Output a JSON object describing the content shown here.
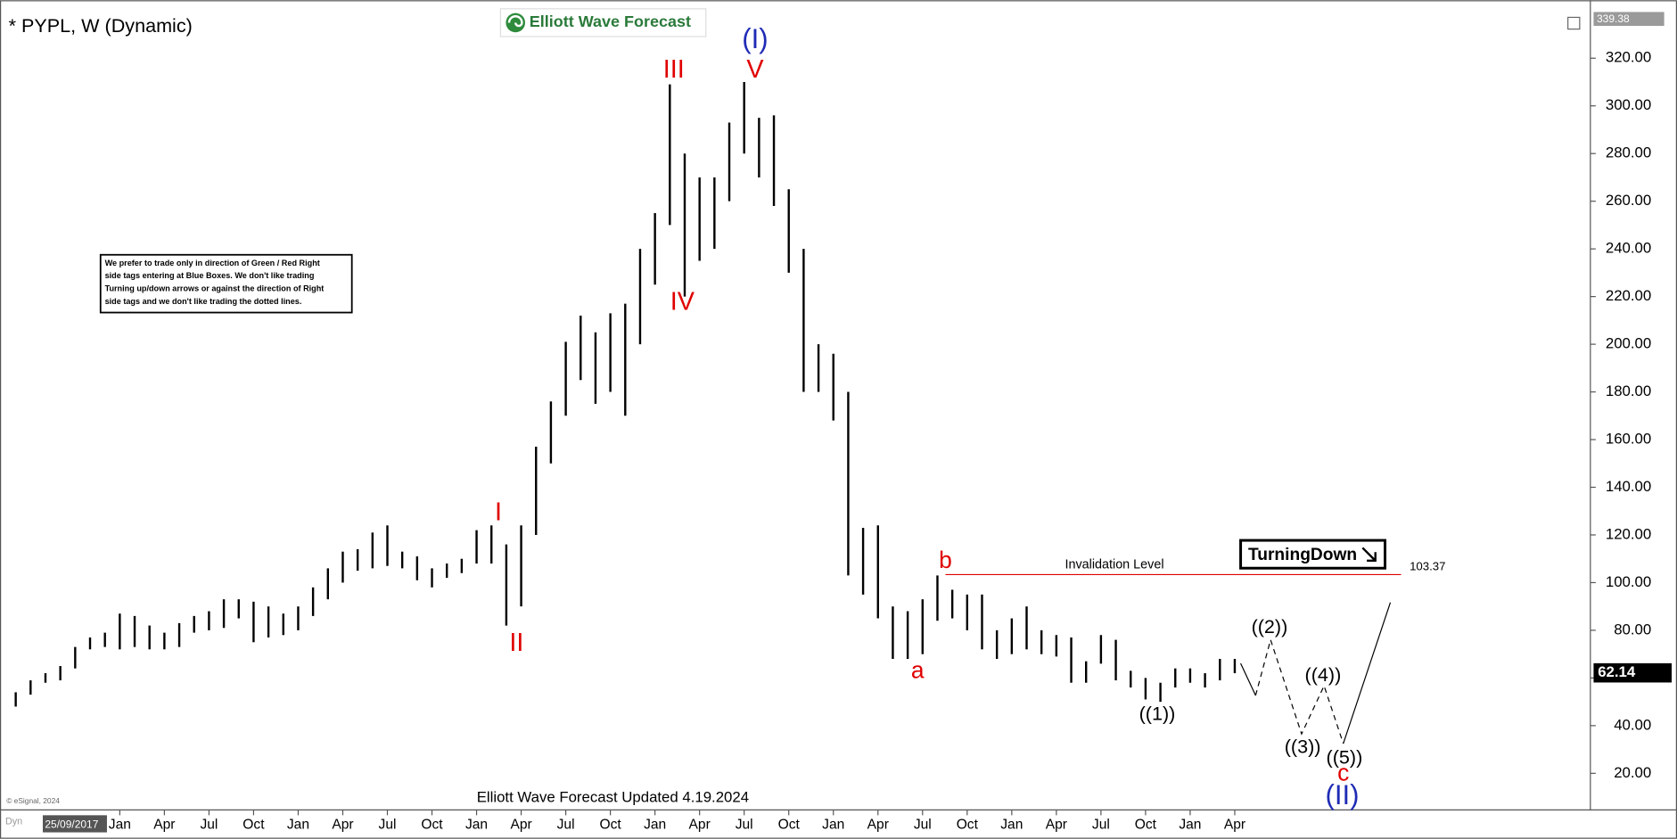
{
  "chart_data": {
    "type": "hilo",
    "title": "* PYPL, W (Dynamic)",
    "brand": "Elliott Wave Forecast",
    "footer": "Elliott Wave Forecast Updated 4.19.2024",
    "copyright": "© eSignal, 2024",
    "date_tag": "25/09/2017",
    "corner_tag": "Dyn",
    "color": "#000000",
    "categories": [
      null,
      null,
      null,
      null,
      null,
      null,
      null,
      "Jan",
      null,
      null,
      "Apr",
      null,
      null,
      "Jul",
      null,
      null,
      "Oct",
      null,
      null,
      "Jan",
      null,
      null,
      "Apr",
      null,
      null,
      "Jul",
      null,
      null,
      "Oct",
      null,
      null,
      "Jan",
      null,
      null,
      "Apr",
      null,
      null,
      "Jul",
      null,
      null,
      "Oct",
      null,
      null,
      "Jan",
      null,
      null,
      "Apr",
      null,
      null,
      "Jul",
      null,
      null,
      "Oct",
      null,
      null,
      "Jan",
      null,
      null,
      "Apr",
      null,
      null,
      "Jul",
      null,
      null,
      "Oct",
      null,
      null,
      "Jan",
      null,
      null,
      "Apr",
      null,
      null,
      "Jul",
      null,
      null,
      "Oct",
      null,
      null,
      "Jan",
      null,
      null,
      "Apr"
    ],
    "highs": [
      54,
      59,
      62,
      65,
      73,
      77,
      79,
      87,
      86,
      82,
      79,
      83,
      86,
      88,
      93,
      93,
      92,
      90,
      87,
      90,
      98,
      106,
      113,
      114,
      121,
      124,
      113,
      111,
      106,
      108,
      110,
      122,
      124,
      116,
      124,
      157,
      176,
      201,
      212,
      205,
      213,
      217,
      240,
      255,
      309,
      280,
      270,
      270,
      293,
      310,
      295,
      296,
      265,
      240,
      200,
      196,
      180,
      123,
      124,
      90,
      88,
      93,
      103,
      97,
      95,
      95,
      80,
      85,
      90,
      80,
      78,
      77,
      67,
      78,
      76,
      63,
      60,
      58,
      64,
      64,
      62,
      68,
      68
    ],
    "lows": [
      48,
      53,
      58,
      59,
      64,
      72,
      73,
      72,
      73,
      72,
      72,
      73,
      79,
      80,
      81,
      85,
      75,
      77,
      78,
      80,
      86,
      93,
      100,
      105,
      106,
      107,
      106,
      101,
      98,
      102,
      104,
      108,
      108,
      82,
      90,
      120,
      150,
      170,
      185,
      175,
      180,
      170,
      200,
      225,
      250,
      220,
      235,
      240,
      260,
      280,
      270,
      258,
      230,
      180,
      180,
      168,
      103,
      95,
      85,
      68,
      68,
      70,
      84,
      85,
      80,
      72,
      68,
      70,
      72,
      70,
      69,
      58,
      58,
      66,
      59,
      56,
      51,
      50,
      56,
      58,
      56,
      59,
      62
    ],
    "ylim": [
      6,
      339.38
    ],
    "top_label": "339.38",
    "last_price": {
      "value": 62.14,
      "label": "62.14"
    },
    "yticks": [
      {
        "value": 20,
        "label": "20.00"
      },
      {
        "value": 40,
        "label": "40.00"
      },
      {
        "value": 60,
        "label": "60.00"
      },
      {
        "value": 80,
        "label": "80.00"
      },
      {
        "value": 100,
        "label": "100.00"
      },
      {
        "value": 120,
        "label": "120.00"
      },
      {
        "value": 140,
        "label": "140.00"
      },
      {
        "value": 160,
        "label": "160.00"
      },
      {
        "value": 180,
        "label": "180.00"
      },
      {
        "value": 200,
        "label": "200.00"
      },
      {
        "value": 220,
        "label": "220.00"
      },
      {
        "value": 240,
        "label": "240.00"
      },
      {
        "value": 260,
        "label": "260.00"
      },
      {
        "value": 280,
        "label": "280.00"
      },
      {
        "value": 300,
        "label": "300.00"
      },
      {
        "value": 320,
        "label": "320.00"
      }
    ],
    "invalidation": {
      "label": "Invalidation Level",
      "value": 103.37
    },
    "badge": "TurningDown",
    "note": [
      "We prefer to trade only in direction of Green / Red Right",
      "side tags entering at Blue Boxes. We don't like trading",
      "Turning up/down arrows or against the direction of Right",
      "side tags and we don't like trading the dotted lines."
    ],
    "wave_labels": [
      {
        "text": "I",
        "color": "#e00000"
      },
      {
        "text": "II",
        "color": "#e00000"
      },
      {
        "text": "III",
        "color": "#e00000"
      },
      {
        "text": "IV",
        "color": "#e00000"
      },
      {
        "text": "V",
        "color": "#e00000"
      },
      {
        "text": "(I)",
        "color": "#1f2bb5"
      },
      {
        "text": "a",
        "color": "#e00000"
      },
      {
        "text": "b",
        "color": "#e00000"
      },
      {
        "text": "((1))",
        "color": "#000000"
      },
      {
        "text": "((2))",
        "color": "#000000"
      },
      {
        "text": "((3))",
        "color": "#000000"
      },
      {
        "text": "((4))",
        "color": "#000000"
      },
      {
        "text": "((5))",
        "color": "#000000"
      },
      {
        "text": "c",
        "color": "#e00000"
      },
      {
        "text": "(II)",
        "color": "#1f2bb5"
      }
    ]
  }
}
